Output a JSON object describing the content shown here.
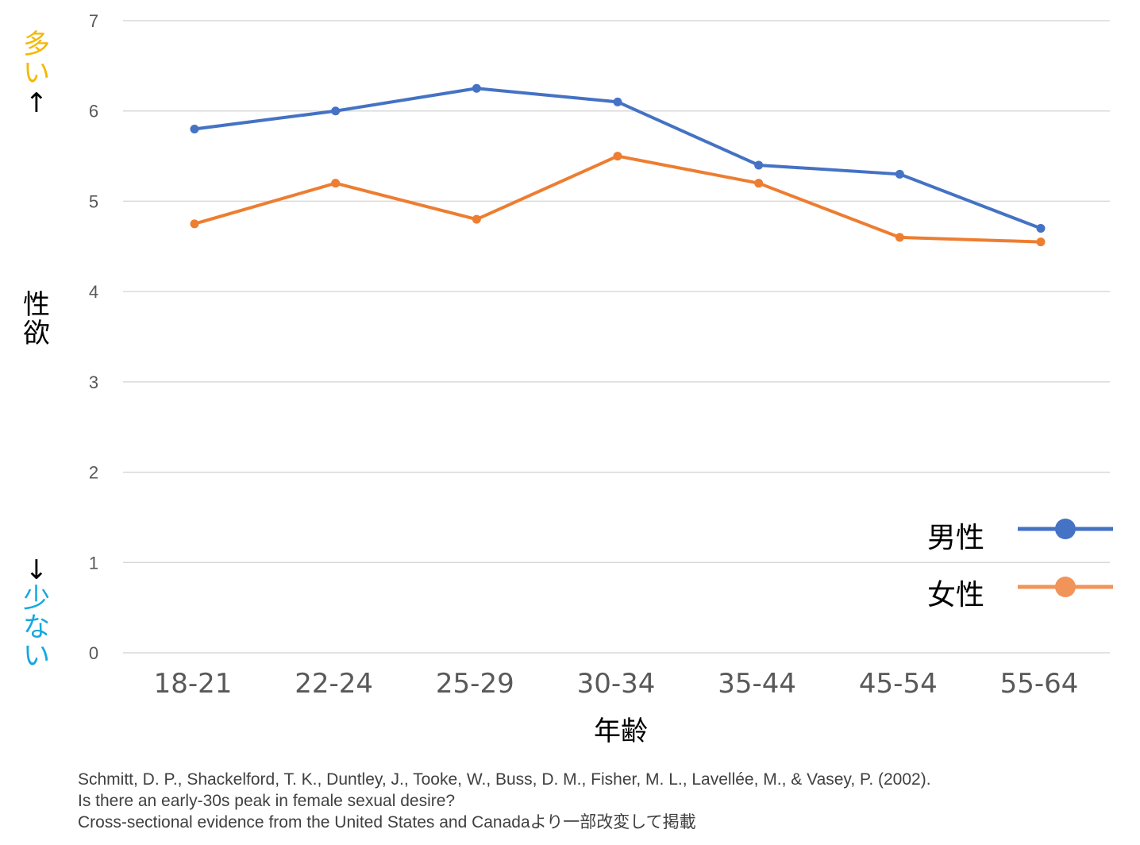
{
  "chart_data": {
    "type": "line",
    "categories": [
      "18-21",
      "22-24",
      "25-29",
      "30-34",
      "35-44",
      "45-54",
      "55-64"
    ],
    "series": [
      {
        "name": "男性",
        "color": "#4472c4",
        "values": [
          5.8,
          6.0,
          6.25,
          6.1,
          5.4,
          5.3,
          4.7
        ]
      },
      {
        "name": "女性",
        "color": "#ed7d31",
        "values": [
          4.75,
          5.2,
          4.8,
          5.5,
          5.2,
          4.6,
          4.55
        ]
      }
    ],
    "xlabel": "年齢",
    "ylabel": "性欲",
    "ylabel_top": "多い",
    "ylabel_bottom": "少ない",
    "arrow_up": "↑",
    "arrow_down": "↓",
    "ylim": [
      0,
      7
    ],
    "yticks": [
      "0",
      "1",
      "2",
      "3",
      "4",
      "5",
      "6",
      "7"
    ],
    "grid": true,
    "legend_position": "bottom-right",
    "legend_marker_colors": [
      "#4472c4",
      "#f0945a"
    ],
    "label_colors": {
      "top": "#f5b800",
      "bottom": "#14a8e0"
    }
  },
  "citation": {
    "line1": "Schmitt, D. P., Shackelford, T. K., Duntley, J., Tooke, W., Buss, D. M., Fisher, M. L., Lavellée, M., & Vasey, P. (2002).",
    "line2": "Is there an early-30s peak in female sexual desire?",
    "line3": " Cross-sectional evidence from the United States and Canadaより一部改変して掲載"
  }
}
